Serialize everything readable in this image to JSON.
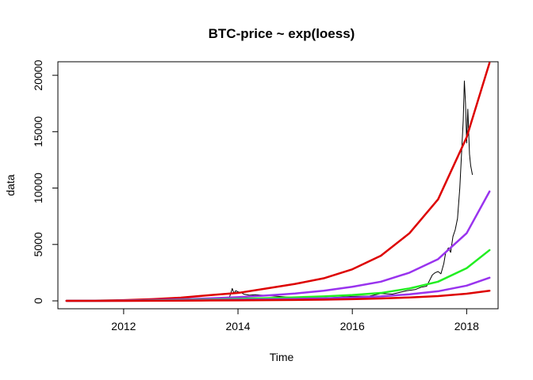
{
  "chart_data": {
    "type": "line",
    "title": "BTC-price ~ exp(loess)",
    "xlabel": "Time",
    "ylabel": "data",
    "xlim": [
      2010.85,
      2018.55
    ],
    "ylim": [
      -700,
      21200
    ],
    "x_ticks": [
      2012,
      2014,
      2016,
      2018
    ],
    "x_tick_labels": [
      "2012",
      "2014",
      "2016",
      "2018"
    ],
    "y_ticks": [
      0,
      5000,
      10000,
      15000,
      20000
    ],
    "y_tick_labels": [
      "0",
      "5000",
      "10000",
      "15000",
      "20000"
    ],
    "grid": false,
    "legend": "none",
    "series": [
      {
        "color": "#000000",
        "width": 1,
        "x": [
          2011.0,
          2011.5,
          2012.0,
          2012.5,
          2013.0,
          2013.5,
          2013.85,
          2013.9,
          2013.93,
          2013.96,
          2014.0,
          2014.05,
          2014.1,
          2014.2,
          2014.3,
          2014.5,
          2014.75,
          2015.0,
          2015.5,
          2016.0,
          2016.3,
          2016.5,
          2016.7,
          2016.95,
          2017.1,
          2017.2,
          2017.3,
          2017.35,
          2017.4,
          2017.45,
          2017.5,
          2017.55,
          2017.6,
          2017.63,
          2017.68,
          2017.72,
          2017.76,
          2017.8,
          2017.84,
          2017.88,
          2017.91,
          2017.94,
          2017.96,
          2017.98,
          2018.0,
          2018.02,
          2018.05,
          2018.07,
          2018.1
        ],
        "y": [
          1,
          15,
          5,
          7,
          13,
          100,
          300,
          1100,
          650,
          900,
          800,
          750,
          600,
          500,
          550,
          480,
          380,
          300,
          250,
          400,
          420,
          650,
          600,
          900,
          1000,
          1200,
          1300,
          1800,
          2300,
          2500,
          2600,
          2400,
          3300,
          4200,
          4700,
          4300,
          5700,
          6300,
          7300,
          10000,
          13000,
          16000,
          19500,
          17500,
          14000,
          17000,
          13000,
          12000,
          11200
        ]
      },
      {
        "color": "#DD0000",
        "width": 2.5,
        "x": [
          2011.0,
          2011.5,
          2012.0,
          2012.5,
          2013.0,
          2013.5,
          2014.0,
          2014.5,
          2015.0,
          2015.5,
          2016.0,
          2016.5,
          2017.0,
          2017.5,
          2018.0,
          2018.4
        ],
        "y": [
          0,
          20,
          60,
          150,
          280,
          500,
          700,
          1100,
          1500,
          2000,
          2800,
          4000,
          6000,
          9000,
          14500,
          21100
        ]
      },
      {
        "color": "#9933EE",
        "width": 2.5,
        "x": [
          2011.0,
          2011.5,
          2012.0,
          2012.5,
          2013.0,
          2013.5,
          2014.0,
          2014.5,
          2015.0,
          2015.5,
          2016.0,
          2016.5,
          2017.0,
          2017.5,
          2018.0,
          2018.4
        ],
        "y": [
          0,
          10,
          30,
          70,
          130,
          220,
          330,
          480,
          650,
          900,
          1250,
          1700,
          2500,
          3700,
          6000,
          9700
        ]
      },
      {
        "color": "#22EE22",
        "width": 2.5,
        "x": [
          2011.0,
          2011.5,
          2012.0,
          2012.5,
          2013.0,
          2013.5,
          2014.0,
          2014.5,
          2015.0,
          2015.5,
          2016.0,
          2016.5,
          2017.0,
          2017.5,
          2018.0,
          2018.4
        ],
        "y": [
          0,
          5,
          15,
          35,
          70,
          120,
          180,
          240,
          310,
          400,
          520,
          700,
          1100,
          1700,
          2900,
          4500
        ]
      },
      {
        "color": "#9933EE",
        "width": 2.5,
        "x": [
          2011.0,
          2011.5,
          2012.0,
          2012.5,
          2013.0,
          2013.5,
          2014.0,
          2014.5,
          2015.0,
          2015.5,
          2016.0,
          2016.5,
          2017.0,
          2017.5,
          2018.0,
          2018.4
        ],
        "y": [
          0,
          3,
          8,
          20,
          40,
          70,
          100,
          130,
          170,
          220,
          290,
          400,
          580,
          850,
          1350,
          2050
        ]
      },
      {
        "color": "#DD0000",
        "width": 2.5,
        "x": [
          2011.0,
          2011.5,
          2012.0,
          2012.5,
          2013.0,
          2013.5,
          2014.0,
          2014.5,
          2015.0,
          2015.5,
          2016.0,
          2016.5,
          2017.0,
          2017.5,
          2018.0,
          2018.4
        ],
        "y": [
          0,
          2,
          4,
          10,
          20,
          35,
          50,
          65,
          85,
          110,
          150,
          210,
          300,
          420,
          630,
          900
        ]
      }
    ]
  }
}
